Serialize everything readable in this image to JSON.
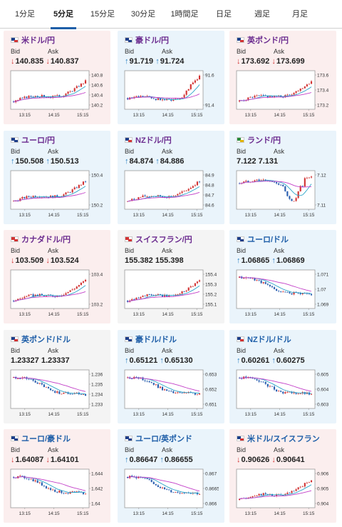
{
  "tabs": [
    "1分足",
    "5分足",
    "15分足",
    "30分足",
    "1時間足",
    "日足",
    "週足",
    "月足"
  ],
  "active_tab": 1,
  "labels": {
    "bid": "Bid",
    "ask": "Ask"
  },
  "colors": {
    "up_bg": "#eaf4fb",
    "down_bg": "#fbeeee",
    "accent": "#1e5ea8",
    "candle_up": "#d23333",
    "candle_down": "#2a5fb0",
    "ma_short": "#2aa4c8",
    "ma_long": "#c23fc8"
  },
  "time_labels": [
    "13:15",
    "14:15",
    "15:15"
  ],
  "cards": [
    {
      "pair": "米ドル/円",
      "flag": "us",
      "bid": "140.835",
      "ask": "140.837",
      "bid_dir": "down",
      "ask_dir": "down",
      "bg": "down",
      "pair_color": "purple",
      "yticks": [
        "140.8",
        "140.6",
        "140.4",
        "140.2"
      ],
      "trend": "up"
    },
    {
      "pair": "豪ドル/円",
      "flag": "au",
      "bid": "91.719",
      "ask": "91.724",
      "bid_dir": "up",
      "ask_dir": "up",
      "bg": "up",
      "pair_color": "purple",
      "yticks": [
        "91.6",
        "91.4"
      ],
      "trend": "vup"
    },
    {
      "pair": "英ポンド/円",
      "flag": "gb",
      "bid": "173.692",
      "ask": "173.699",
      "bid_dir": "down",
      "ask_dir": "down",
      "bg": "down",
      "pair_color": "purple",
      "yticks": [
        "173.6",
        "173.4",
        "173.2"
      ],
      "trend": "up"
    },
    {
      "pair": "ユーロ/円",
      "flag": "eu",
      "bid": "150.508",
      "ask": "150.513",
      "bid_dir": "up",
      "ask_dir": "up",
      "bg": "up",
      "pair_color": "purple",
      "yticks": [
        "150.4",
        "150.2"
      ],
      "trend": "up"
    },
    {
      "pair": "NZドル/円",
      "flag": "nz",
      "bid": "84.874",
      "ask": "84.886",
      "bid_dir": "up",
      "ask_dir": "up",
      "bg": "up",
      "pair_color": "purple",
      "yticks": [
        "84.9",
        "84.8",
        "84.7",
        "84.6"
      ],
      "trend": "up"
    },
    {
      "pair": "ランド/円",
      "flag": "za",
      "bid": "7.122",
      "ask": "7.131",
      "bid_dir": "none",
      "ask_dir": "none",
      "bg": "up",
      "pair_color": "purple",
      "yticks": [
        "7.12",
        "7.11"
      ],
      "trend": "dip"
    },
    {
      "pair": "カナダドル/円",
      "flag": "ca",
      "bid": "103.509",
      "ask": "103.524",
      "bid_dir": "down",
      "ask_dir": "down",
      "bg": "down",
      "pair_color": "purple",
      "yticks": [
        "103.4",
        "103.2"
      ],
      "trend": "up"
    },
    {
      "pair": "スイスフラン/円",
      "flag": "ch",
      "bid": "155.382",
      "ask": "155.398",
      "bid_dir": "none",
      "ask_dir": "none",
      "bg": "neutral",
      "pair_color": "purple",
      "yticks": [
        "155.4",
        "155.3",
        "155.2",
        "155.1"
      ],
      "trend": "up"
    },
    {
      "pair": "ユーロ/ドル",
      "flag": "eu",
      "bid": "1.06865",
      "ask": "1.06869",
      "bid_dir": "up",
      "ask_dir": "up",
      "bg": "up",
      "pair_color": "blue",
      "yticks": [
        "1.071",
        "1.07",
        "1.069"
      ],
      "trend": "down"
    },
    {
      "pair": "英ポンド/ドル",
      "flag": "gb",
      "bid": "1.23327",
      "ask": "1.23337",
      "bid_dir": "none",
      "ask_dir": "none",
      "bg": "neutral",
      "pair_color": "blue",
      "yticks": [
        "1.236",
        "1.235",
        "1.234",
        "1.233"
      ],
      "trend": "down"
    },
    {
      "pair": "豪ドル/ドル",
      "flag": "au",
      "bid": "0.65121",
      "ask": "0.65130",
      "bid_dir": "up",
      "ask_dir": "up",
      "bg": "up",
      "pair_color": "blue",
      "yticks": [
        "0.653",
        "0.652",
        "0.651"
      ],
      "trend": "down"
    },
    {
      "pair": "NZドル/ドル",
      "flag": "nz",
      "bid": "0.60261",
      "ask": "0.60275",
      "bid_dir": "up",
      "ask_dir": "up",
      "bg": "up",
      "pair_color": "blue",
      "yticks": [
        "0.605",
        "0.604",
        "0.603"
      ],
      "trend": "down"
    },
    {
      "pair": "ユーロ/豪ドル",
      "flag": "eu",
      "bid": "1.64087",
      "ask": "1.64101",
      "bid_dir": "down",
      "ask_dir": "down",
      "bg": "down",
      "pair_color": "blue",
      "yticks": [
        "1.644",
        "1.642",
        "1.64"
      ],
      "trend": "down"
    },
    {
      "pair": "ユーロ/英ポンド",
      "flag": "eu",
      "bid": "0.86647",
      "ask": "0.86655",
      "bid_dir": "up",
      "ask_dir": "up",
      "bg": "up",
      "pair_color": "blue",
      "yticks": [
        "0.867",
        "0.8665",
        "0.866"
      ],
      "trend": "down"
    },
    {
      "pair": "米ドル/スイスフラン",
      "flag": "us",
      "bid": "0.90626",
      "ask": "0.90641",
      "bid_dir": "down",
      "ask_dir": "down",
      "bg": "down",
      "pair_color": "blue",
      "yticks": [
        "0.906",
        "0.905",
        "0.904"
      ],
      "trend": "up"
    }
  ]
}
